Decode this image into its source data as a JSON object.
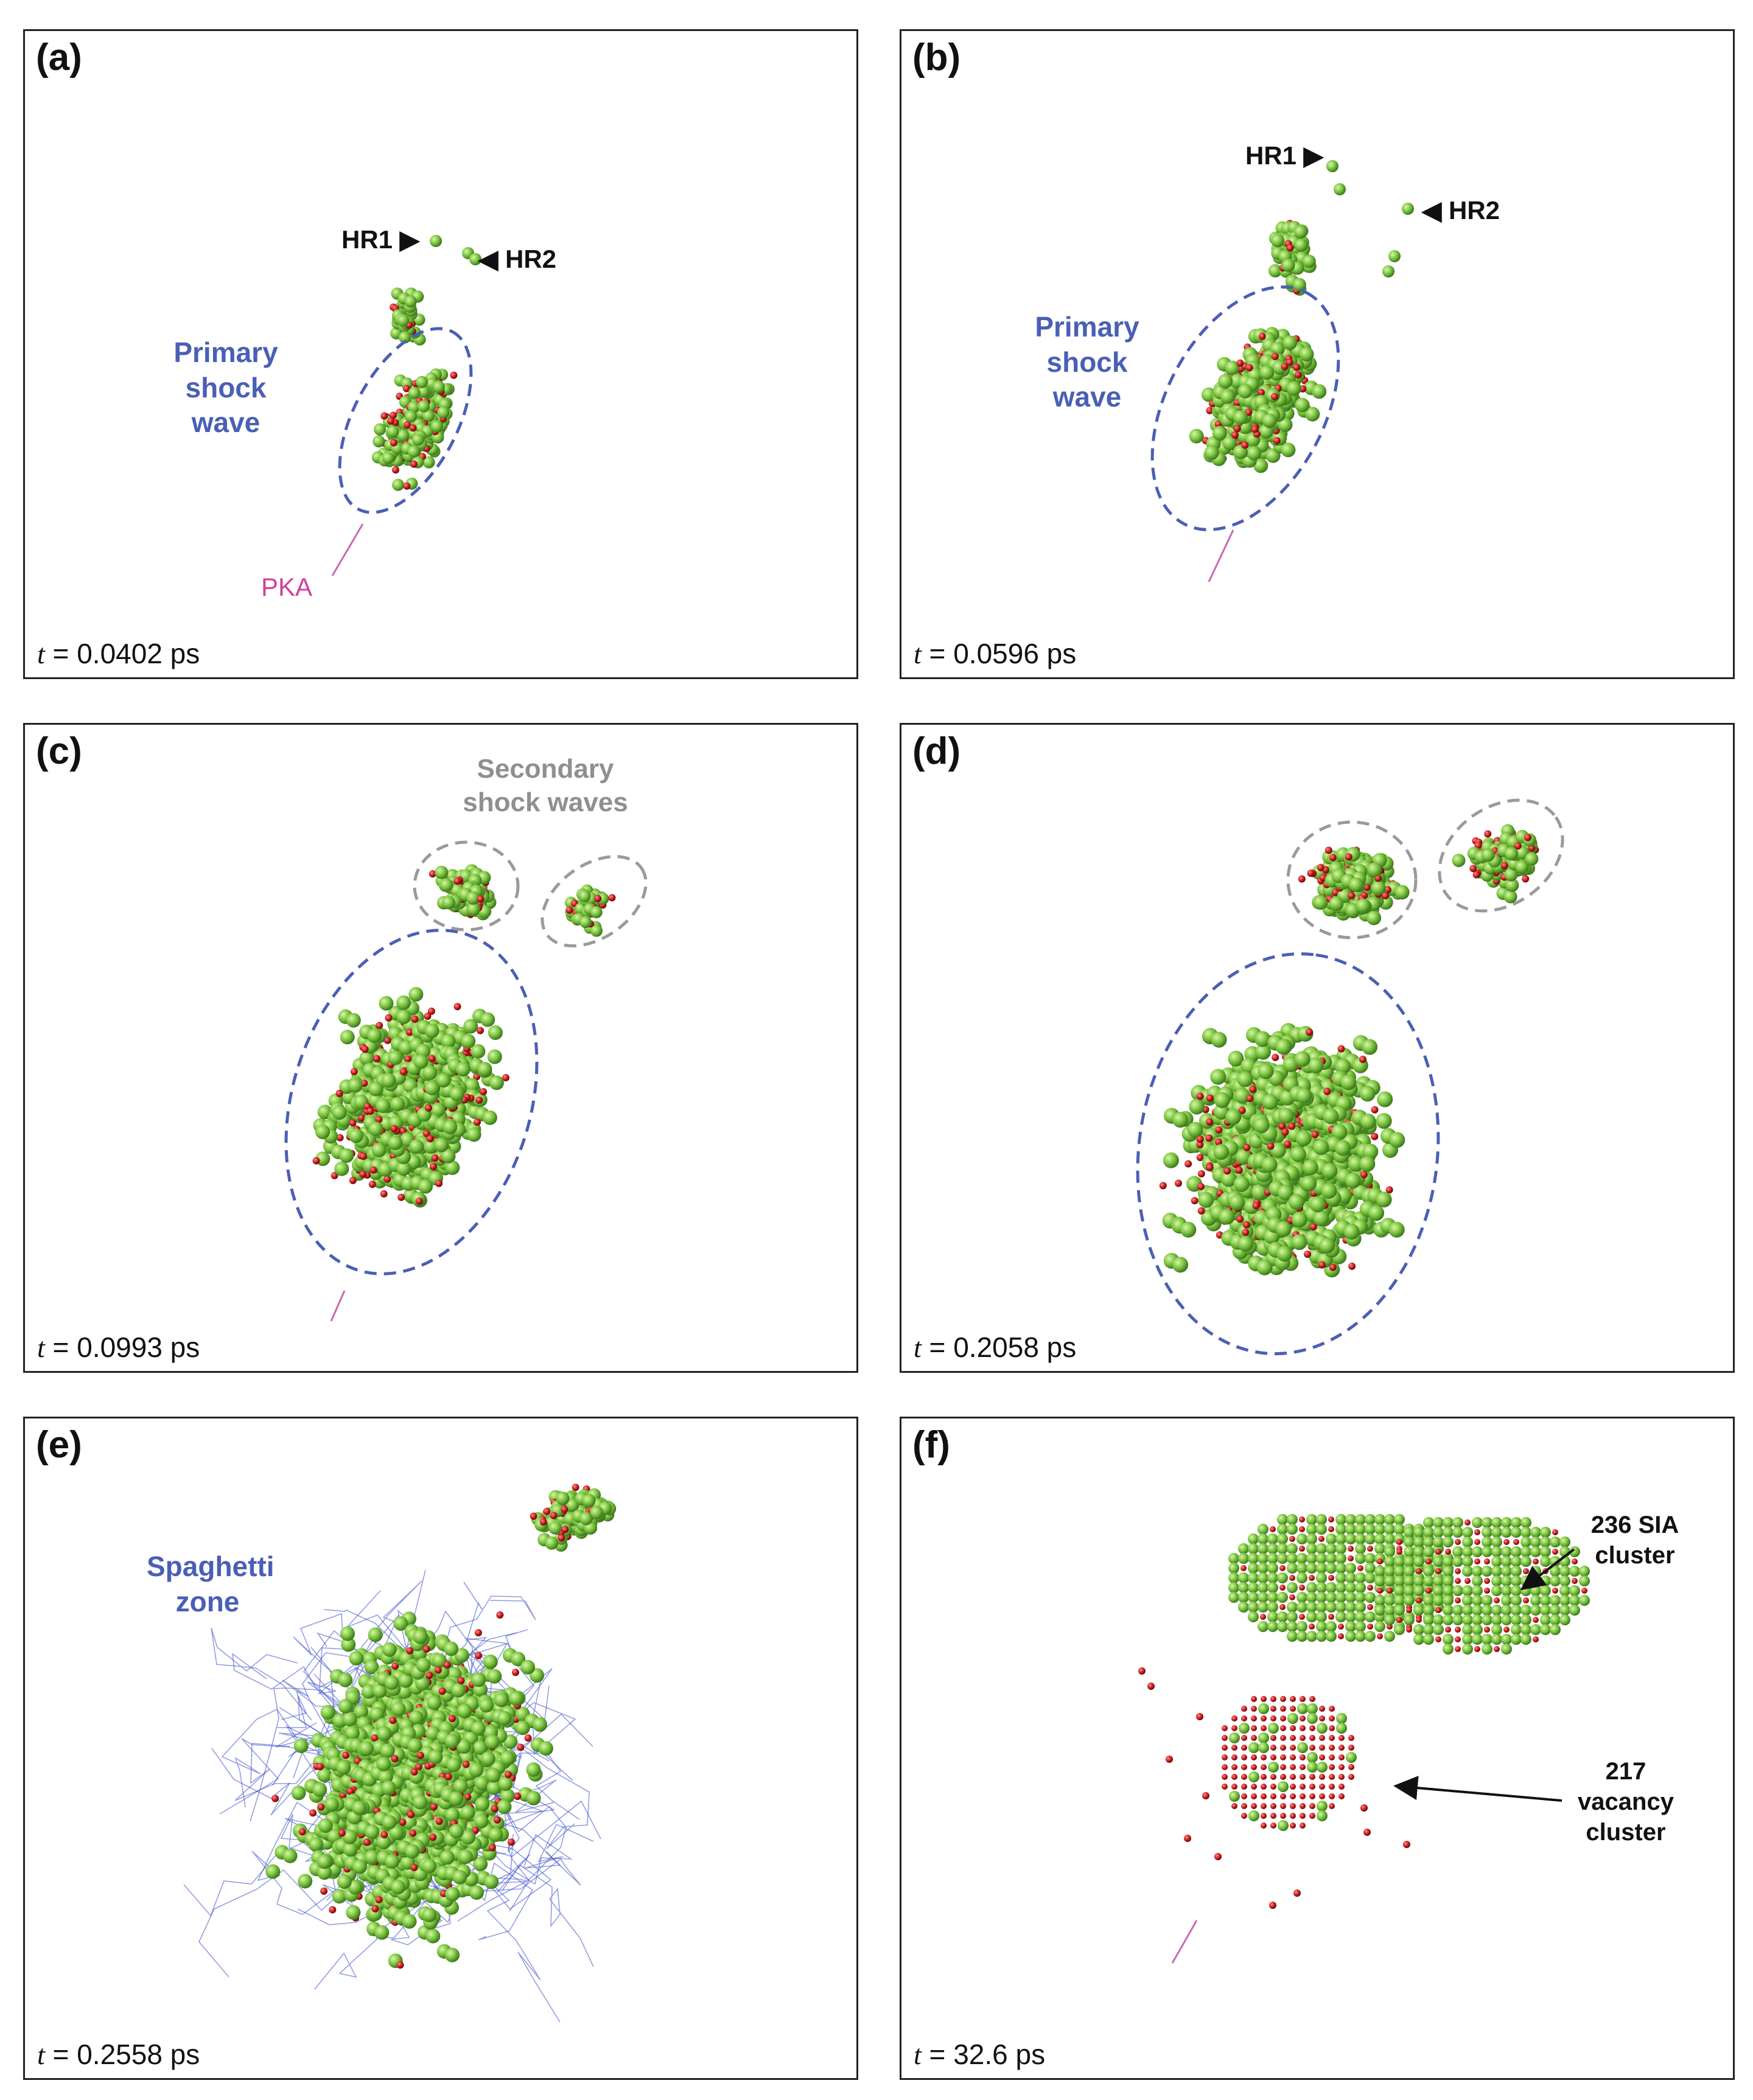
{
  "colors": {
    "atom_green": "#7cc640",
    "atom_red": "#c81e1e",
    "primary_ellipse": "#4a5fb5",
    "secondary_ellipse": "#9a9a9a",
    "pka_arrow": "#c86ab0",
    "spaghetti": "#3a4fc8"
  },
  "panels": [
    {
      "label": "(a)",
      "time_var": "t",
      "time_value": " = 0.0402 ps",
      "annotations": {
        "primary": "Primary shock wave",
        "hr1": "HR1",
        "hr2": "HR2",
        "pka": "PKA"
      }
    },
    {
      "label": "(b)",
      "time_var": "t",
      "time_value": " = 0.0596 ps",
      "annotations": {
        "primary": "Primary shock wave",
        "hr1": "HR1",
        "hr2": "HR2"
      }
    },
    {
      "label": "(c)",
      "time_var": "t",
      "time_value": " = 0.0993 ps",
      "annotations": {
        "secondary": "Secondary shock waves"
      }
    },
    {
      "label": "(d)",
      "time_var": "t",
      "time_value": " = 0.2058 ps",
      "annotations": {}
    },
    {
      "label": "(e)",
      "time_var": "t",
      "time_value": " = 0.2558 ps",
      "annotations": {
        "spaghetti": "Spaghetti zone"
      }
    },
    {
      "label": "(f)",
      "time_var": "t",
      "time_value": " = 32.6 ps",
      "annotations": {
        "sia": "236 SIA cluster",
        "vacancy": "217 vacancy cluster"
      }
    }
  ]
}
